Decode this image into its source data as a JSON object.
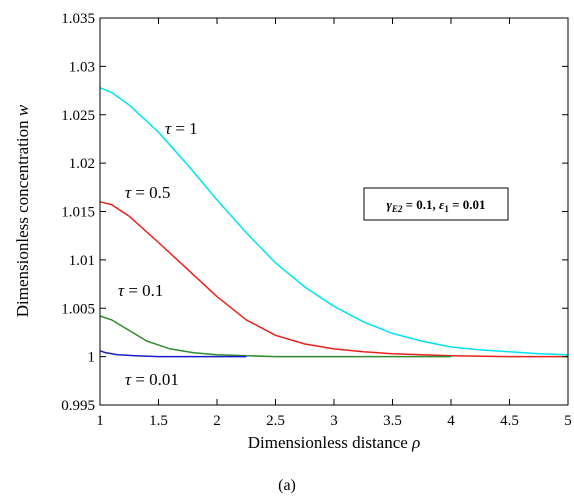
{
  "chart_data": {
    "type": "line",
    "title": "",
    "xlabel_prefix": "Dimensionless distance ",
    "xlabel_symbol": "ρ",
    "ylabel_prefix": "Dimensionless concentration ",
    "ylabel_symbol": "w",
    "xlim": [
      1,
      5
    ],
    "ylim": [
      0.995,
      1.035
    ],
    "x_ticks": [
      1,
      1.5,
      2,
      2.5,
      3,
      3.5,
      4,
      4.5,
      5
    ],
    "x_tick_labels": [
      "1",
      "1.5",
      "2",
      "2.5",
      "3",
      "3.5",
      "4",
      "4.5",
      "5"
    ],
    "y_ticks": [
      0.995,
      1,
      1.005,
      1.01,
      1.015,
      1.02,
      1.025,
      1.03,
      1.035
    ],
    "y_tick_labels": [
      "0.995",
      "1",
      "1.005",
      "1.01",
      "1.015",
      "1.02",
      "1.025",
      "1.03",
      "1.035"
    ],
    "grid": false,
    "series": [
      {
        "color": "#00e5ee",
        "x": [
          1.0,
          1.1,
          1.25,
          1.5,
          1.75,
          2.0,
          2.25,
          2.5,
          2.75,
          3.0,
          3.25,
          3.5,
          3.75,
          4.0,
          4.25,
          4.5,
          4.75,
          5.0
        ],
        "y": [
          1.0278,
          1.0273,
          1.026,
          1.0232,
          1.0198,
          1.0162,
          1.0128,
          1.0097,
          1.0072,
          1.0052,
          1.0036,
          1.0024,
          1.0016,
          1.001,
          1.0007,
          1.0005,
          1.0003,
          1.0002
        ]
      },
      {
        "color": "#e8211c",
        "x": [
          1.0,
          1.1,
          1.25,
          1.5,
          1.75,
          2.0,
          2.25,
          2.5,
          2.75,
          3.0,
          3.25,
          3.5,
          3.75,
          4.0,
          4.5,
          5.0
        ],
        "y": [
          1.016,
          1.0157,
          1.0145,
          1.0118,
          1.009,
          1.0062,
          1.0038,
          1.0022,
          1.0013,
          1.0008,
          1.0005,
          1.0003,
          1.0002,
          1.0001,
          1.0,
          1.0
        ]
      },
      {
        "color": "#2e8b2e",
        "x": [
          1.0,
          1.1,
          1.25,
          1.4,
          1.6,
          1.8,
          2.0,
          2.25,
          2.5,
          3.0,
          3.5,
          4.0
        ],
        "y": [
          1.0042,
          1.0038,
          1.0027,
          1.0016,
          1.0008,
          1.0004,
          1.0002,
          1.0001,
          1.0,
          1.0,
          1.0,
          1.0
        ]
      },
      {
        "color": "#1a1acd",
        "x": [
          1.0,
          1.05,
          1.15,
          1.3,
          1.5,
          1.75,
          2.0,
          2.25
        ],
        "y": [
          1.0006,
          1.0004,
          1.0002,
          1.0001,
          1.0,
          1.0,
          1.0,
          1.0
        ]
      }
    ],
    "annotations": [
      {
        "greek": "τ",
        "text": " = 1"
      },
      {
        "greek": "τ",
        "text": " = 0.5"
      },
      {
        "greek": "τ",
        "text": " = 0.1"
      },
      {
        "greek": "τ",
        "text": " = 0.01"
      }
    ],
    "box_annotation": {
      "g_symbol": "γ",
      "g_sub": "E2",
      "g_val": " = 0.1, ",
      "e_symbol": "ε",
      "e_sub": "1",
      "e_val": " = 0.01"
    }
  },
  "caption": "(a)"
}
